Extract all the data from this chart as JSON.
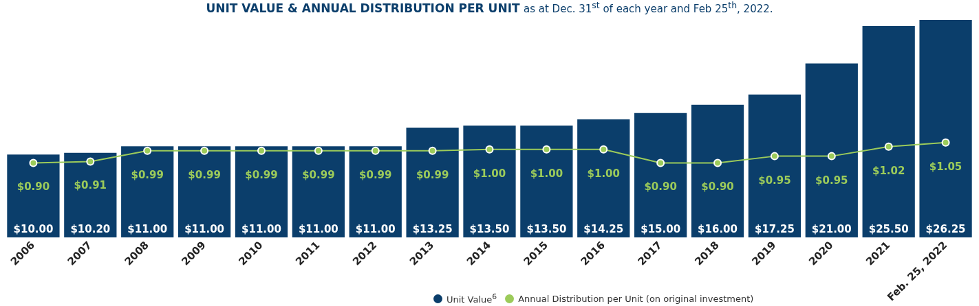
{
  "chart_data": {
    "type": "bar",
    "title": "UNIT VALUE & ANNUAL DISTRIBUTION PER UNIT",
    "subtitle": "as at Dec. 31$^{st}$ of each year and Feb 25$^{th}$, 2022.",
    "categories": [
      "2006",
      "2007",
      "2008",
      "2009",
      "2010",
      "2011",
      "2012",
      "2013",
      "2014",
      "2015",
      "2016",
      "2017",
      "2018",
      "2019",
      "2020",
      "2021",
      "Feb. 25, 2022"
    ],
    "series": [
      {
        "name": "Unit Value$^{6}$",
        "color": "#0b3e6b",
        "values": [
          10.0,
          10.2,
          11.0,
          11.0,
          11.0,
          11.0,
          11.0,
          13.25,
          13.5,
          13.5,
          14.25,
          15.0,
          16.0,
          17.25,
          21.0,
          25.5,
          26.25
        ],
        "value_labels": [
          "$10.00",
          "$10.20",
          "$11.00",
          "$11.00",
          "$11.00",
          "$11.00",
          "$11.00",
          "$13.25",
          "$13.50",
          "$13.50",
          "$14.25",
          "$15.00",
          "$16.00",
          "$17.25",
          "$21.00",
          "$25.50",
          "$26.25"
        ]
      },
      {
        "name": "Annual Distribution per Unit (on original investment)",
        "type": "line",
        "axis": "y2",
        "color": "#9ccb5a",
        "marker": "circle",
        "values": [
          0.9,
          0.91,
          0.99,
          0.99,
          0.99,
          0.99,
          0.99,
          0.99,
          1.0,
          1.0,
          1.0,
          0.9,
          0.9,
          0.95,
          0.95,
          1.02,
          1.05
        ],
        "value_labels": [
          "$0.90",
          "$0.91",
          "$0.99",
          "$0.99",
          "$0.99",
          "$0.99",
          "$0.99",
          "$0.99",
          "$1.00",
          "$1.00",
          "$1.00",
          "$0.90",
          "$0.90",
          "$0.95",
          "$0.95",
          "$1.02",
          "$1.05"
        ]
      }
    ],
    "tick_labels": "x",
    "grid": false,
    "legend": "bottom"
  }
}
